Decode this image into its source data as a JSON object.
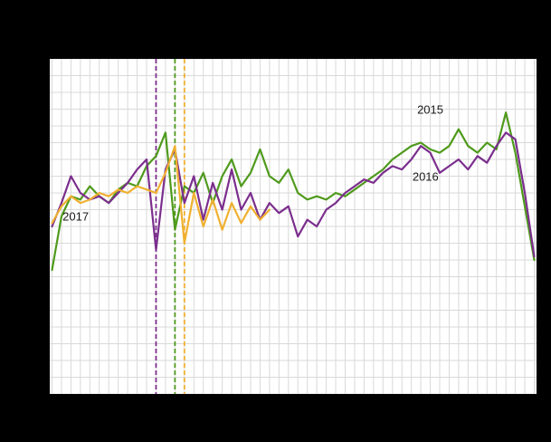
{
  "figure": {
    "background": "#000000",
    "plot_background": "#ffffff",
    "grid_color": "#d9d9d9",
    "annotation_text_color": "#1a1a1a"
  },
  "chart_data": {
    "type": "line",
    "title": "",
    "xlabel": "",
    "ylabel": "",
    "x_unit": "week",
    "x_range": [
      1,
      52
    ],
    "ylim": [
      0,
      100
    ],
    "grid_step_x": 1,
    "grid_step_y": 5,
    "grid_on": true,
    "legend_position": "none",
    "series": [
      {
        "name": "2015",
        "color": "#4f9a1c",
        "values": [
          37,
          53,
          59,
          58,
          62,
          59,
          57,
          61,
          63,
          62,
          68,
          71,
          78,
          49,
          62,
          60,
          66,
          57,
          65,
          70,
          62,
          66,
          73,
          65,
          63,
          67,
          60,
          58,
          59,
          58,
          60,
          59,
          61,
          63,
          65,
          67,
          70,
          72,
          74,
          75,
          73,
          72,
          74,
          79,
          74,
          72,
          75,
          73,
          84,
          72,
          56,
          40
        ]
      },
      {
        "name": "2016",
        "color": "#7b2e8d",
        "values": [
          50,
          57,
          65,
          60,
          58,
          59,
          57,
          60,
          63,
          67,
          70,
          43,
          67,
          73,
          57,
          65,
          52,
          63,
          55,
          67,
          55,
          60,
          52,
          57,
          54,
          56,
          47,
          52,
          50,
          55,
          57,
          60,
          62,
          64,
          63,
          66,
          68,
          67,
          70,
          74,
          72,
          66,
          68,
          70,
          67,
          71,
          69,
          74,
          78,
          76,
          60,
          41
        ]
      },
      {
        "name": "2017",
        "color": "#f0b02f",
        "values": [
          51,
          56,
          59,
          57,
          58,
          60,
          59,
          61,
          60,
          62,
          61,
          60,
          66,
          74,
          45,
          60,
          50,
          58,
          49,
          57,
          51,
          56,
          52,
          55
        ]
      }
    ],
    "event_lines": [
      {
        "week": 12,
        "color": "#7b2e8d",
        "style": "dashed"
      },
      {
        "week": 14,
        "color": "#4f9a1c",
        "style": "dashed"
      },
      {
        "week": 15,
        "color": "#f0b02f",
        "style": "dashed"
      }
    ],
    "annotations": [
      {
        "label": "2015",
        "week": 41,
        "value": 85
      },
      {
        "label": "2016",
        "week": 40.5,
        "value": 65
      },
      {
        "label": "2017",
        "week": 3.5,
        "value": 53
      }
    ]
  }
}
